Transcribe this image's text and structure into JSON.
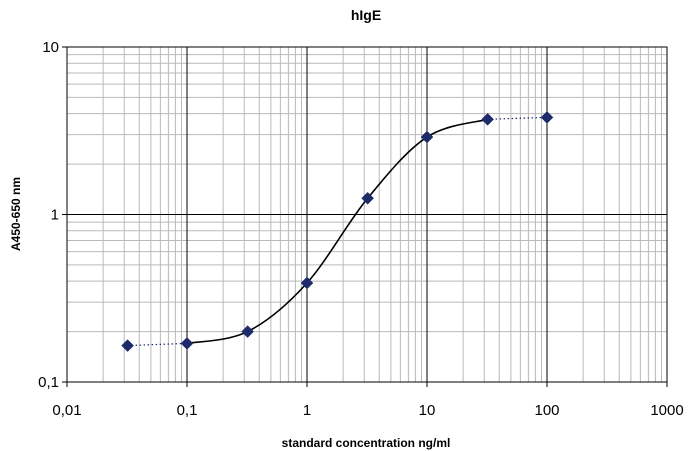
{
  "chart_data": {
    "type": "scatter",
    "title": "hIgE",
    "xlabel": "standard concentration ng/ml",
    "ylabel": "A450-650 nm",
    "x_scale": "log",
    "y_scale": "log",
    "xlim": [
      0.01,
      1000
    ],
    "ylim": [
      0.1,
      10
    ],
    "x_tick_labels": [
      "0,01",
      "0,1",
      "1",
      "10",
      "100",
      "1000"
    ],
    "y_tick_labels": [
      "0,1",
      "1",
      "10"
    ],
    "grid": true,
    "legend": "none",
    "marker_color": "#1f2a6b",
    "line_color": "#000000",
    "series": [
      {
        "x": [
          0.032,
          0.1,
          0.32,
          1,
          3.2,
          10,
          32,
          100
        ],
        "y": [
          0.165,
          0.17,
          0.2,
          0.39,
          1.25,
          2.9,
          3.7,
          3.8
        ]
      }
    ]
  }
}
